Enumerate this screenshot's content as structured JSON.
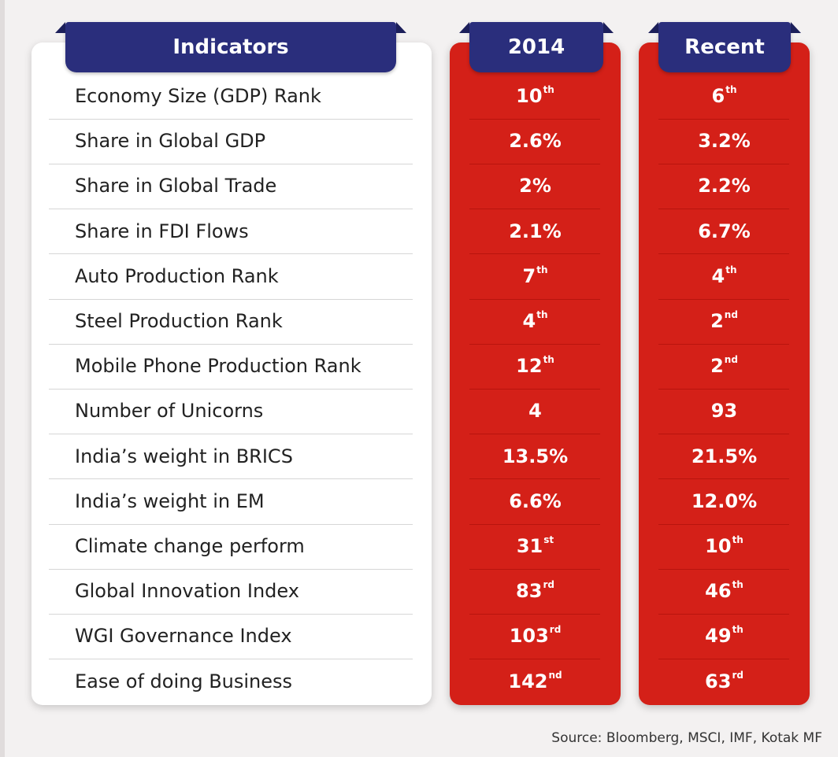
{
  "headers": {
    "indicators": "Indicators",
    "year_2014": "2014",
    "recent": "Recent"
  },
  "colors": {
    "header_navy": "#2a2e7c",
    "column_red": "#d42018",
    "panel_white": "#ffffff"
  },
  "rows": [
    {
      "label": "Economy Size (GDP) Rank",
      "v2014": "10",
      "v2014_sup": "th",
      "recent": "6",
      "recent_sup": "th"
    },
    {
      "label": "Share in Global GDP",
      "v2014": "2.6%",
      "v2014_sup": "",
      "recent": "3.2%",
      "recent_sup": ""
    },
    {
      "label": "Share in Global Trade",
      "v2014": "2%",
      "v2014_sup": "",
      "recent": "2.2%",
      "recent_sup": ""
    },
    {
      "label": "Share in FDI Flows",
      "v2014": "2.1%",
      "v2014_sup": "",
      "recent": "6.7%",
      "recent_sup": ""
    },
    {
      "label": "Auto Production Rank",
      "v2014": "7",
      "v2014_sup": "th",
      "recent": "4",
      "recent_sup": "th"
    },
    {
      "label": "Steel Production Rank",
      "v2014": "4",
      "v2014_sup": "th",
      "recent": "2",
      "recent_sup": "nd"
    },
    {
      "label": "Mobile Phone Production Rank",
      "v2014": "12",
      "v2014_sup": "th",
      "recent": "2",
      "recent_sup": "nd"
    },
    {
      "label": "Number of Unicorns",
      "v2014": "4",
      "v2014_sup": "",
      "recent": "93",
      "recent_sup": ""
    },
    {
      "label": "India’s weight in BRICS",
      "v2014": "13.5%",
      "v2014_sup": "",
      "recent": "21.5%",
      "recent_sup": ""
    },
    {
      "label": "India’s weight in EM",
      "v2014": "6.6%",
      "v2014_sup": "",
      "recent": "12.0%",
      "recent_sup": ""
    },
    {
      "label": "Climate change perform",
      "v2014": "31",
      "v2014_sup": "st",
      "recent": "10",
      "recent_sup": "th"
    },
    {
      "label": "Global Innovation Index",
      "v2014": "83",
      "v2014_sup": "rd",
      "recent": "46",
      "recent_sup": "th"
    },
    {
      "label": "WGI Governance Index",
      "v2014": "103",
      "v2014_sup": "rd",
      "recent": "49",
      "recent_sup": "th"
    },
    {
      "label": "Ease of doing Business",
      "v2014": "142",
      "v2014_sup": "nd",
      "recent": "63",
      "recent_sup": "rd"
    }
  ],
  "source": "Source: Bloomberg, MSCI, IMF, Kotak MF"
}
